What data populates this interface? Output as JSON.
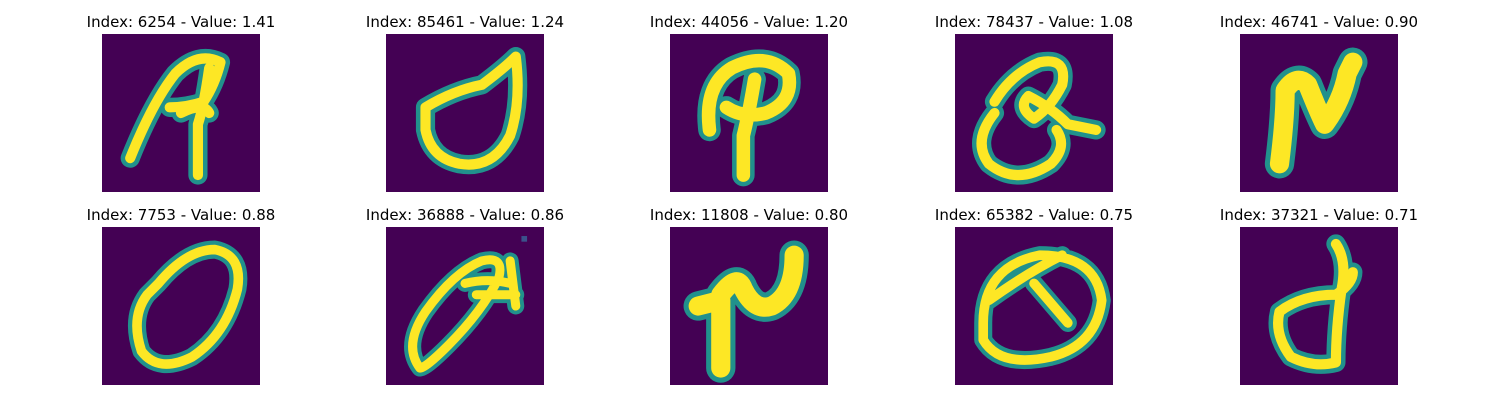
{
  "colors": {
    "background": "#440154",
    "stroke_core": "#fde725",
    "stroke_mid": "#5ec962",
    "stroke_edge": "#21918c"
  },
  "figures": [
    {
      "title": "Index: 6254 - Value: 1.41",
      "glyph": "glyph-6254"
    },
    {
      "title": "Index: 85461 - Value: 1.24",
      "glyph": "glyph-85461"
    },
    {
      "title": "Index: 44056 - Value: 1.20",
      "glyph": "glyph-44056"
    },
    {
      "title": "Index: 78437 - Value: 1.08",
      "glyph": "glyph-78437"
    },
    {
      "title": "Index: 46741 - Value: 0.90",
      "glyph": "glyph-46741"
    },
    {
      "title": "Index: 7753 - Value: 0.88",
      "glyph": "glyph-7753"
    },
    {
      "title": "Index: 36888 - Value: 0.86",
      "glyph": "glyph-36888"
    },
    {
      "title": "Index: 11808 - Value: 0.80",
      "glyph": "glyph-11808"
    },
    {
      "title": "Index: 65382 - Value: 0.75",
      "glyph": "glyph-65382"
    },
    {
      "title": "Index: 37321 - Value: 0.71",
      "glyph": "glyph-37321"
    }
  ]
}
